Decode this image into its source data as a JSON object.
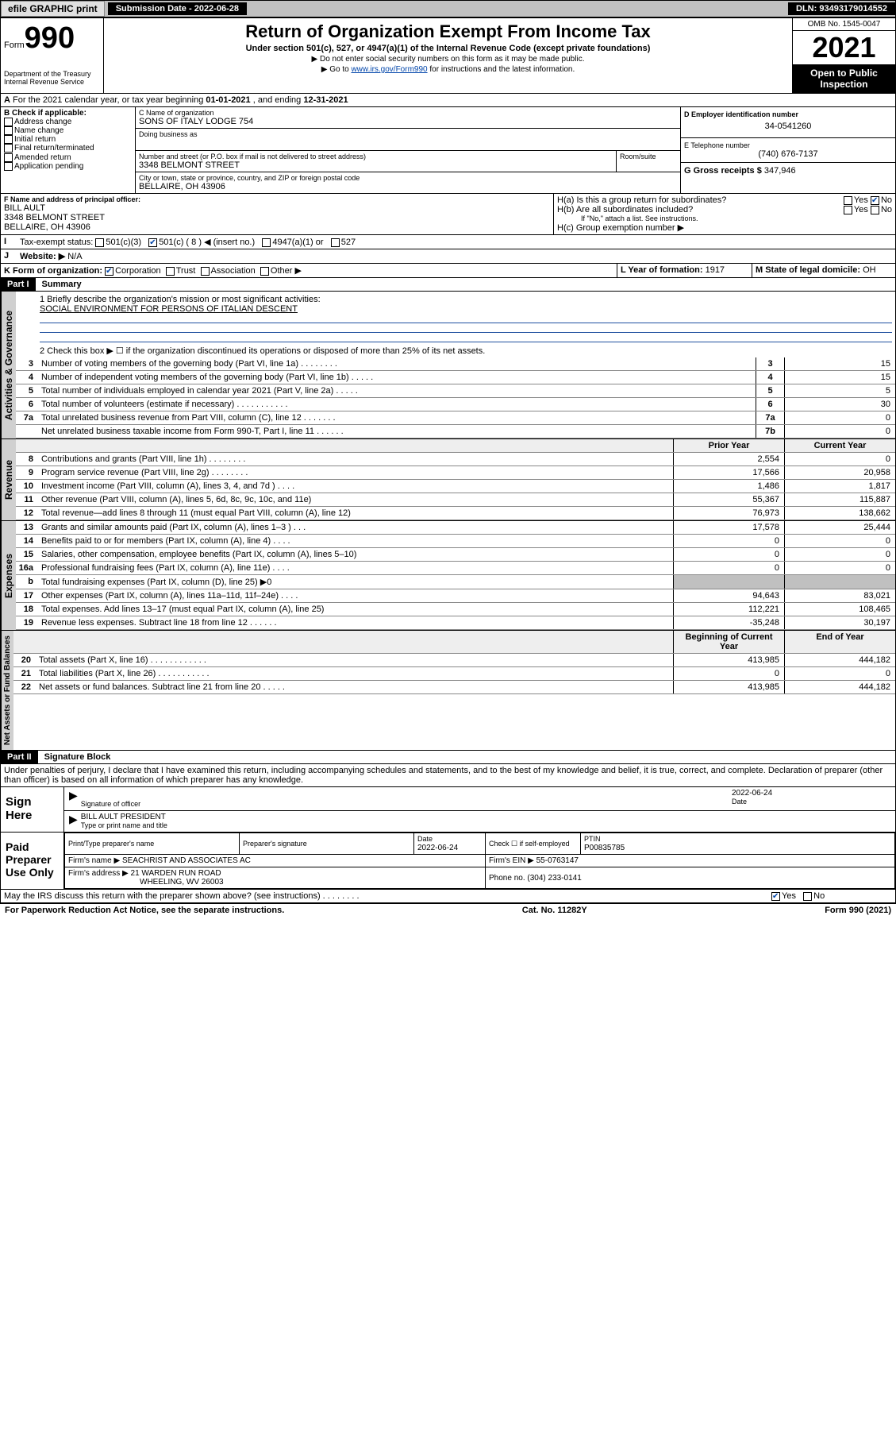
{
  "topbar": {
    "efile": "efile GRAPHIC print",
    "submission_label": "Submission Date - 2022-06-28",
    "dln": "DLN: 93493179014552"
  },
  "header": {
    "form_prefix": "Form",
    "form_number": "990",
    "dept": "Department of the Treasury",
    "irs": "Internal Revenue Service",
    "title": "Return of Organization Exempt From Income Tax",
    "subtitle": "Under section 501(c), 527, or 4947(a)(1) of the Internal Revenue Code (except private foundations)",
    "note1": "▶ Do not enter social security numbers on this form as it may be made public.",
    "note2_pre": "▶ Go to ",
    "note2_link": "www.irs.gov/Form990",
    "note2_post": " for instructions and the latest information.",
    "omb": "OMB No. 1545-0047",
    "year": "2021",
    "open1": "Open to Public",
    "open2": "Inspection"
  },
  "period": {
    "text_a": "For the 2021 calendar year, or tax year beginning ",
    "begin": "01-01-2021",
    "text_b": " , and ending ",
    "end": "12-31-2021"
  },
  "box_b": {
    "label": "B Check if applicable:",
    "items": [
      "Address change",
      "Name change",
      "Initial return",
      "Final return/terminated",
      "Amended return",
      "Application pending"
    ]
  },
  "box_c": {
    "name_label": "C Name of organization",
    "name": "SONS OF ITALY LODGE 754",
    "dba_label": "Doing business as",
    "dba": "",
    "street_label": "Number and street (or P.O. box if mail is not delivered to street address)",
    "room_label": "Room/suite",
    "street": "3348 BELMONT STREET",
    "city_label": "City or town, state or province, country, and ZIP or foreign postal code",
    "city": "BELLAIRE, OH  43906"
  },
  "box_d": {
    "label": "D Employer identification number",
    "value": "34-0541260"
  },
  "box_e": {
    "label": "E Telephone number",
    "value": "(740) 676-7137"
  },
  "box_g": {
    "label": "G Gross receipts $",
    "value": "347,946"
  },
  "box_f": {
    "label": "F  Name and address of principal officer:",
    "name": "BILL AULT",
    "street": "3348 BELMONT STREET",
    "city": "BELLAIRE, OH  43906"
  },
  "box_h": {
    "ha": "H(a)  Is this a group return for subordinates?",
    "ha_yes": "Yes",
    "ha_no": "No",
    "hb": "H(b)  Are all subordinates included?",
    "hb_yes": "Yes",
    "hb_no": "No",
    "hb_note": "If \"No,\" attach a list. See instructions.",
    "hc": "H(c)  Group exemption number ▶"
  },
  "box_i": {
    "label": "Tax-exempt status:",
    "c3": "501(c)(3)",
    "c_other_pre": "501(c) (",
    "c_other_num": "8",
    "c_other_post": ") ◀ (insert no.)",
    "a4947": "4947(a)(1) or",
    "s527": "527"
  },
  "box_j": {
    "label": "Website: ▶",
    "value": "N/A"
  },
  "box_k": {
    "label": "K Form of organization:",
    "corp": "Corporation",
    "trust": "Trust",
    "assoc": "Association",
    "other": "Other ▶"
  },
  "box_l": {
    "label": "L Year of formation:",
    "value": "1917"
  },
  "box_m": {
    "label": "M State of legal domicile:",
    "value": "OH"
  },
  "part1": {
    "hdr": "Part I",
    "title": "Summary",
    "q1_label": "1  Briefly describe the organization's mission or most significant activities:",
    "q1_value": "SOCIAL ENVIRONMENT FOR PERSONS OF ITALIAN DESCENT",
    "q2": "2  Check this box ▶ ☐  if the organization discontinued its operations or disposed of more than 25% of its net assets.",
    "lines_gov": [
      {
        "no": "3",
        "txt": "Number of voting members of the governing body (Part VI, line 1a)  .   .   .   .   .   .   .   .",
        "box": "3",
        "val": "15"
      },
      {
        "no": "4",
        "txt": "Number of independent voting members of the governing body (Part VI, line 1b)   .   .   .   .   .",
        "box": "4",
        "val": "15"
      },
      {
        "no": "5",
        "txt": "Total number of individuals employed in calendar year 2021 (Part V, line 2a)   .   .   .   .   .",
        "box": "5",
        "val": "5"
      },
      {
        "no": "6",
        "txt": "Total number of volunteers (estimate if necessary)   .   .   .   .   .   .   .   .   .   .   .",
        "box": "6",
        "val": "30"
      },
      {
        "no": "7a",
        "txt": "Total unrelated business revenue from Part VIII, column (C), line 12   .   .   .   .   .   .   .",
        "box": "7a",
        "val": "0"
      },
      {
        "no": "",
        "txt": "Net unrelated business taxable income from Form 990-T, Part I, line 11   .   .   .   .   .   .",
        "box": "7b",
        "val": "0"
      }
    ],
    "col_prior": "Prior Year",
    "col_current": "Current Year",
    "lines_rev": [
      {
        "no": "8",
        "txt": "Contributions and grants (Part VIII, line 1h)   .   .   .   .   .   .   .   .",
        "p": "2,554",
        "c": "0"
      },
      {
        "no": "9",
        "txt": "Program service revenue (Part VIII, line 2g)   .   .   .   .   .   .   .   .",
        "p": "17,566",
        "c": "20,958"
      },
      {
        "no": "10",
        "txt": "Investment income (Part VIII, column (A), lines 3, 4, and 7d )   .   .   .   .",
        "p": "1,486",
        "c": "1,817"
      },
      {
        "no": "11",
        "txt": "Other revenue (Part VIII, column (A), lines 5, 6d, 8c, 9c, 10c, and 11e)",
        "p": "55,367",
        "c": "115,887"
      },
      {
        "no": "12",
        "txt": "Total revenue—add lines 8 through 11 (must equal Part VIII, column (A), line 12)",
        "p": "76,973",
        "c": "138,662"
      }
    ],
    "lines_exp": [
      {
        "no": "13",
        "txt": "Grants and similar amounts paid (Part IX, column (A), lines 1–3 )   .   .   .",
        "p": "17,578",
        "c": "25,444"
      },
      {
        "no": "14",
        "txt": "Benefits paid to or for members (Part IX, column (A), line 4)   .   .   .   .",
        "p": "0",
        "c": "0"
      },
      {
        "no": "15",
        "txt": "Salaries, other compensation, employee benefits (Part IX, column (A), lines 5–10)",
        "p": "0",
        "c": "0"
      },
      {
        "no": "16a",
        "txt": "Professional fundraising fees (Part IX, column (A), line 11e)   .   .   .   .",
        "p": "0",
        "c": "0"
      },
      {
        "no": "b",
        "txt": "Total fundraising expenses (Part IX, column (D), line 25) ▶0",
        "p": "",
        "c": "",
        "grey": true
      },
      {
        "no": "17",
        "txt": "Other expenses (Part IX, column (A), lines 11a–11d, 11f–24e)   .   .   .   .",
        "p": "94,643",
        "c": "83,021"
      },
      {
        "no": "18",
        "txt": "Total expenses. Add lines 13–17 (must equal Part IX, column (A), line 25)",
        "p": "112,221",
        "c": "108,465"
      },
      {
        "no": "19",
        "txt": "Revenue less expenses. Subtract line 18 from line 12   .   .   .   .   .   .",
        "p": "-35,248",
        "c": "30,197"
      }
    ],
    "col_begin": "Beginning of Current Year",
    "col_end": "End of Year",
    "lines_net": [
      {
        "no": "20",
        "txt": "Total assets (Part X, line 16)   .   .   .   .   .   .   .   .   .   .   .   .",
        "p": "413,985",
        "c": "444,182"
      },
      {
        "no": "21",
        "txt": "Total liabilities (Part X, line 26)   .   .   .   .   .   .   .   .   .   .   .",
        "p": "0",
        "c": "0"
      },
      {
        "no": "22",
        "txt": "Net assets or fund balances. Subtract line 21 from line 20   .   .   .   .   .",
        "p": "413,985",
        "c": "444,182"
      }
    ]
  },
  "part2": {
    "hdr": "Part II",
    "title": "Signature Block",
    "perjury": "Under penalties of perjury, I declare that I have examined this return, including accompanying schedules and statements, and to the best of my knowledge and belief, it is true, correct, and complete. Declaration of preparer (other than officer) is based on all information of which preparer has any knowledge."
  },
  "sign": {
    "label": "Sign Here",
    "sig_label": "Signature of officer",
    "date_label": "Date",
    "date": "2022-06-24",
    "name": "BILL AULT  PRESIDENT",
    "name_label": "Type or print name and title"
  },
  "paid": {
    "label": "Paid Preparer Use Only",
    "col_name": "Print/Type preparer's name",
    "col_sig": "Preparer's signature",
    "col_date": "Date",
    "date": "2022-06-24",
    "self_label": "Check ☐ if self-employed",
    "ptin_label": "PTIN",
    "ptin": "P00835785",
    "firm_name_label": "Firm's name    ▶",
    "firm_name": "SEACHRIST AND ASSOCIATES AC",
    "firm_ein_label": "Firm's EIN ▶",
    "firm_ein": "55-0763147",
    "firm_addr_label": "Firm's address ▶",
    "firm_addr1": "21 WARDEN RUN ROAD",
    "firm_addr2": "WHEELING, WV  26003",
    "phone_label": "Phone no.",
    "phone": "(304) 233-0141"
  },
  "discuss": {
    "q": "May the IRS discuss this return with the preparer shown above? (see instructions)   .   .   .   .   .   .   .   .",
    "yes": "Yes",
    "no": "No"
  },
  "footer": {
    "left": "For Paperwork Reduction Act Notice, see the separate instructions.",
    "mid": "Cat. No. 11282Y",
    "right": "Form 990 (2021)"
  },
  "tabs": {
    "gov": "Activities & Governance",
    "rev": "Revenue",
    "exp": "Expenses",
    "net": "Net Assets or Fund Balances"
  }
}
